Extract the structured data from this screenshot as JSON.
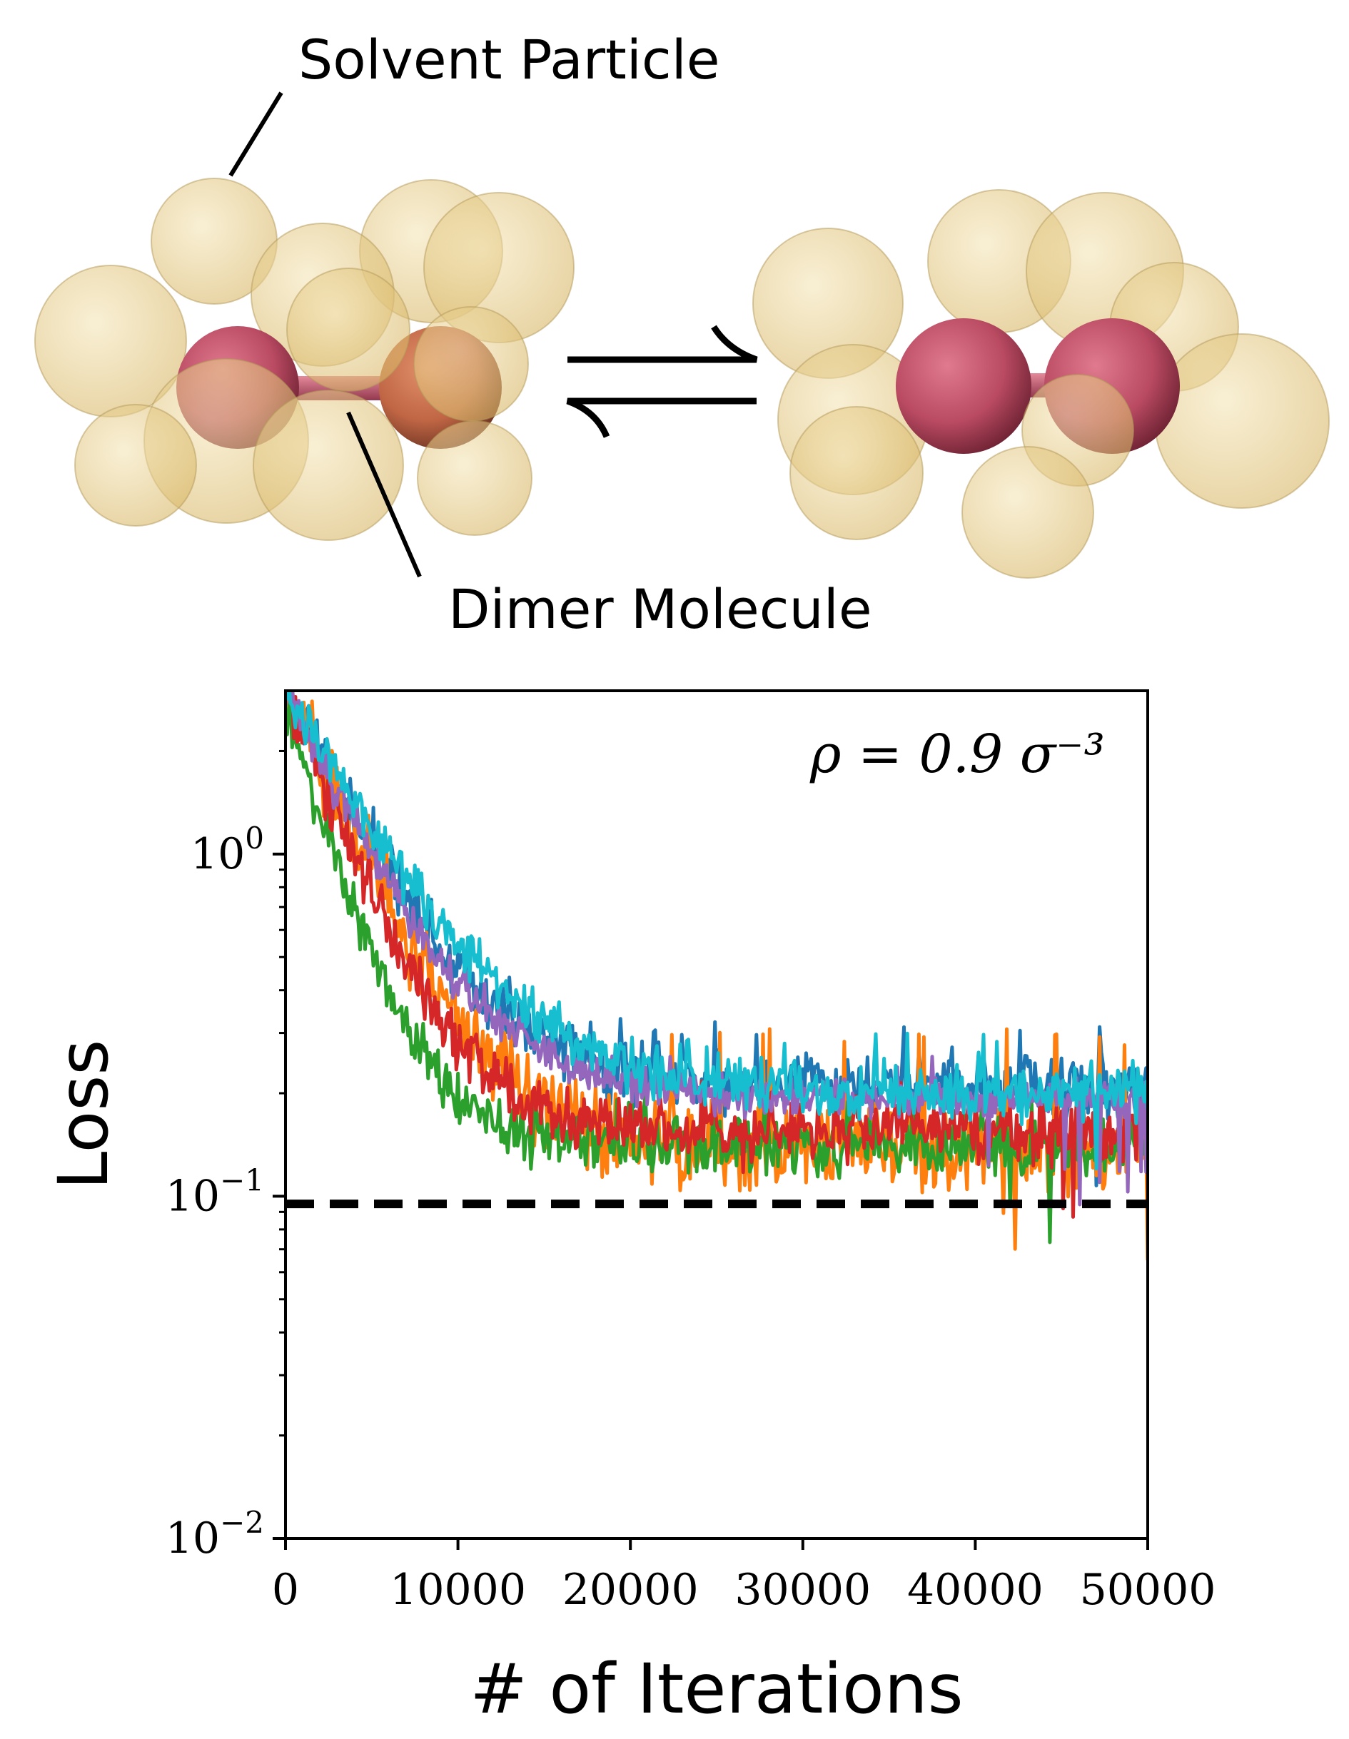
{
  "illustration": {
    "solvent_label": "Solvent Particle",
    "dimer_label": "Dimer Molecule",
    "equilibrium_symbol": "⇌",
    "colors": {
      "solvent": "#e9cf8c",
      "solvent_edge": "#b49a5a",
      "atom_pink": "#c2506a",
      "atom_orange": "#c9714d",
      "bond": "#c25a6a"
    }
  },
  "chart_data": {
    "type": "line",
    "annotation": "ρ = 0.9 σ⁻³",
    "xlabel": "# of Iterations",
    "ylabel": "Loss",
    "xlim": [
      0,
      50000
    ],
    "ylim": [
      0.01,
      3
    ],
    "yscale": "log",
    "xticks": [
      0,
      10000,
      20000,
      30000,
      40000,
      50000
    ],
    "xtick_labels": [
      "0",
      "10000",
      "20000",
      "30000",
      "40000",
      "50000"
    ],
    "yticks": [
      {
        "value": 1,
        "base": "10",
        "exp": "0"
      },
      {
        "value": 0.1,
        "base": "10",
        "exp": "−1"
      },
      {
        "value": 0.01,
        "base": "10",
        "exp": "−2"
      }
    ],
    "reference_line": {
      "y": 0.095,
      "style": "dashed",
      "color": "#000000"
    },
    "series": [
      {
        "color": "#1f77b4",
        "start": 3.0,
        "plateau": 0.21,
        "tau": 4200,
        "noise": 0.2,
        "spike_max": 0.34,
        "final": 0.2
      },
      {
        "color": "#ff7f0e",
        "start": 3.0,
        "plateau": 0.135,
        "tau": 3800,
        "noise": 0.26,
        "spike_max": 0.31,
        "final": 0.065
      },
      {
        "color": "#2ca02c",
        "start": 2.7,
        "plateau": 0.14,
        "tau": 2600,
        "noise": 0.17,
        "spike_max": 0.2,
        "final": 0.12
      },
      {
        "color": "#d62728",
        "start": 3.0,
        "plateau": 0.155,
        "tau": 3200,
        "noise": 0.18,
        "spike_max": 0.22,
        "final": 0.14
      },
      {
        "color": "#9467bd",
        "start": 3.0,
        "plateau": 0.195,
        "tau": 4000,
        "noise": 0.12,
        "spike_max": 0.26,
        "final": 0.17
      },
      {
        "color": "#17becf",
        "start": 3.0,
        "plateau": 0.2,
        "tau": 4800,
        "noise": 0.16,
        "spike_max": 0.3,
        "final": 0.18
      }
    ]
  }
}
